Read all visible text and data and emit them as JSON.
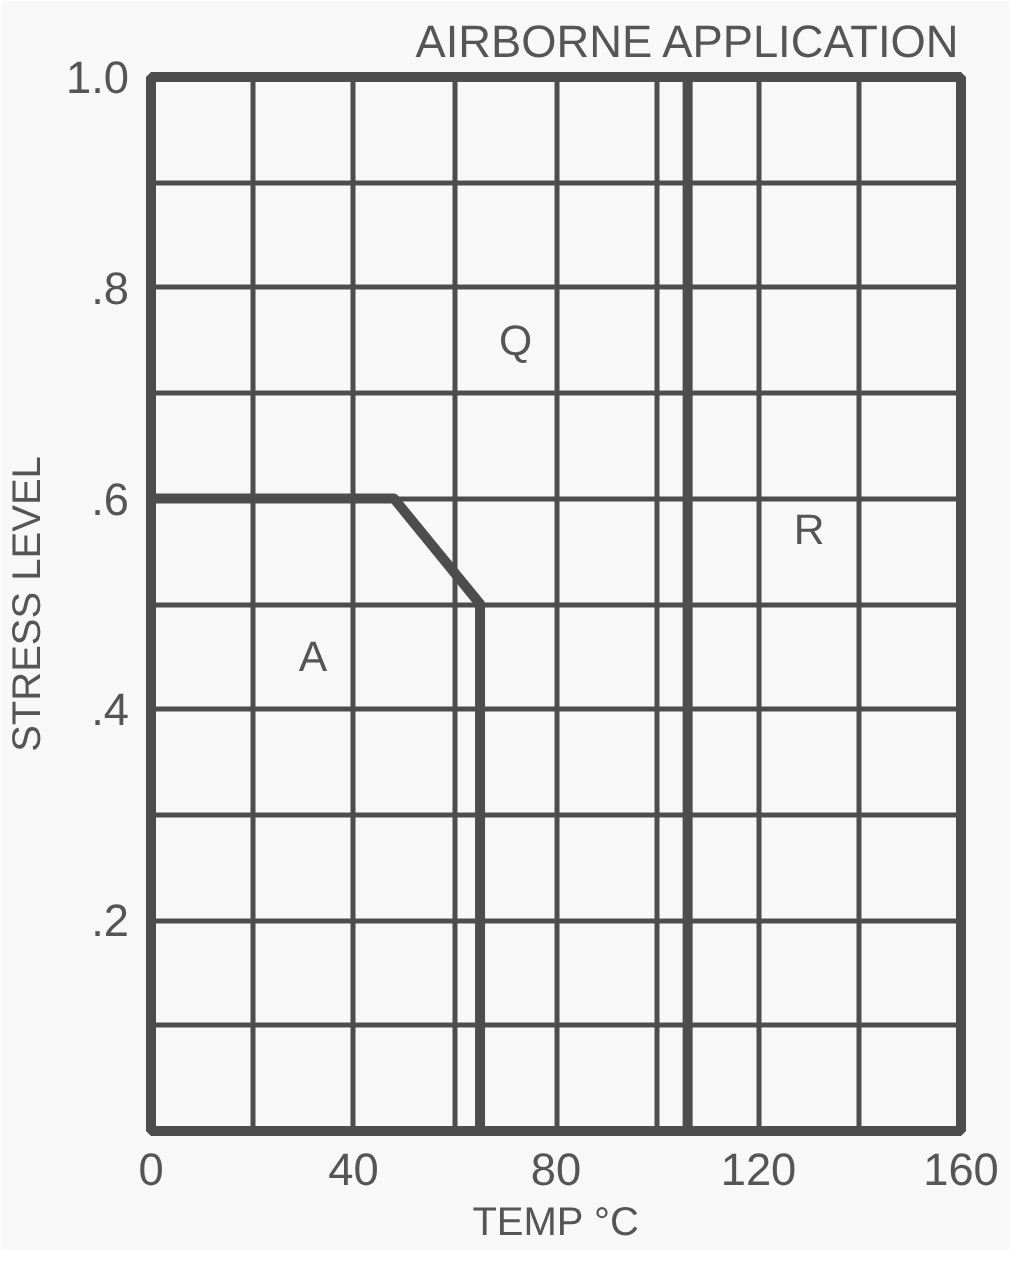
{
  "chart_data": {
    "type": "line",
    "title": "AIRBORNE APPLICATION",
    "xlabel": "TEMP °C",
    "ylabel": "STRESS LEVEL",
    "series": [
      {
        "color": "#4d4d4d",
        "x": [
          0,
          48,
          65,
          65
        ],
        "values": [
          0.6,
          0.6,
          0.5,
          0
        ]
      },
      {
        "color": "#4d4d4d",
        "x": [
          106,
          106
        ],
        "values": [
          0,
          1.0
        ]
      }
    ],
    "xlim": [
      0,
      160
    ],
    "ylim": [
      0,
      1.0
    ],
    "xticks": [
      0,
      {
        "value": 20,
        "label": null
      },
      40,
      {
        "value": 60,
        "label": null
      },
      80,
      {
        "value": 100,
        "label": null
      },
      120,
      {
        "value": 140,
        "label": null
      },
      160
    ],
    "yticks": [
      {
        "value": 0,
        "label": null
      },
      {
        "value": 0.1,
        "label": null
      },
      {
        "value": 0.2,
        "label": ".2"
      },
      {
        "value": 0.3,
        "label": null
      },
      {
        "value": 0.4,
        "label": ".4"
      },
      {
        "value": 0.5,
        "label": null
      },
      {
        "value": 0.6,
        "label": ".6"
      },
      {
        "value": 0.7,
        "label": null
      },
      {
        "value": 0.8,
        "label": ".8"
      },
      {
        "value": 0.9,
        "label": null
      },
      {
        "value": 1.0,
        "label": "1.0"
      }
    ],
    "grid": true,
    "marker": "none",
    "line_style": "solid",
    "annotations": [
      {
        "text": "A",
        "x": 32,
        "y": 0.45
      },
      {
        "text": "Q",
        "x": 72,
        "y": 0.75
      },
      {
        "text": "R",
        "x": 130,
        "y": 0.57
      }
    ]
  }
}
